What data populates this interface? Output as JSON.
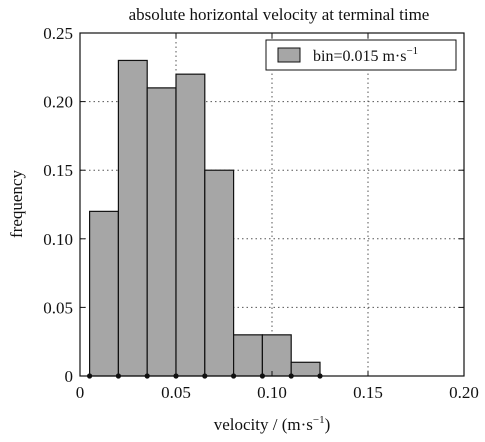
{
  "chart_data": {
    "type": "bar",
    "title": "absolute horizontal velocity at terminal time",
    "xlabel": "velocity / (m·s",
    "xlabel_unit_sup": "−1",
    "xlabel_close": ")",
    "ylabel": "frequency",
    "xlim": [
      0,
      0.2
    ],
    "ylim": [
      0,
      0.25
    ],
    "x_ticks": [
      0,
      0.05,
      0.1,
      0.15,
      0.2
    ],
    "x_tick_labels": [
      "0",
      "0.05",
      "0.10",
      "0.15",
      "0.20"
    ],
    "y_ticks": [
      0,
      0.05,
      0.1,
      0.15,
      0.2,
      0.25
    ],
    "y_tick_labels": [
      "0",
      "0.05",
      "0.10",
      "0.15",
      "0.20",
      "0.25"
    ],
    "grid": true,
    "legend_position": "top-right",
    "bin_width": 0.015,
    "bins": [
      {
        "x0": 0.005,
        "x1": 0.02,
        "value": 0.12
      },
      {
        "x0": 0.02,
        "x1": 0.035,
        "value": 0.23
      },
      {
        "x0": 0.035,
        "x1": 0.05,
        "value": 0.21
      },
      {
        "x0": 0.05,
        "x1": 0.065,
        "value": 0.22
      },
      {
        "x0": 0.065,
        "x1": 0.08,
        "value": 0.15
      },
      {
        "x0": 0.08,
        "x1": 0.095,
        "value": 0.03
      },
      {
        "x0": 0.095,
        "x1": 0.11,
        "value": 0.03
      },
      {
        "x0": 0.11,
        "x1": 0.125,
        "value": 0.01
      }
    ],
    "series": [
      {
        "name": "bin=0.015 m·s",
        "name_sup": "−1",
        "color": "#a6a6a6"
      }
    ]
  }
}
